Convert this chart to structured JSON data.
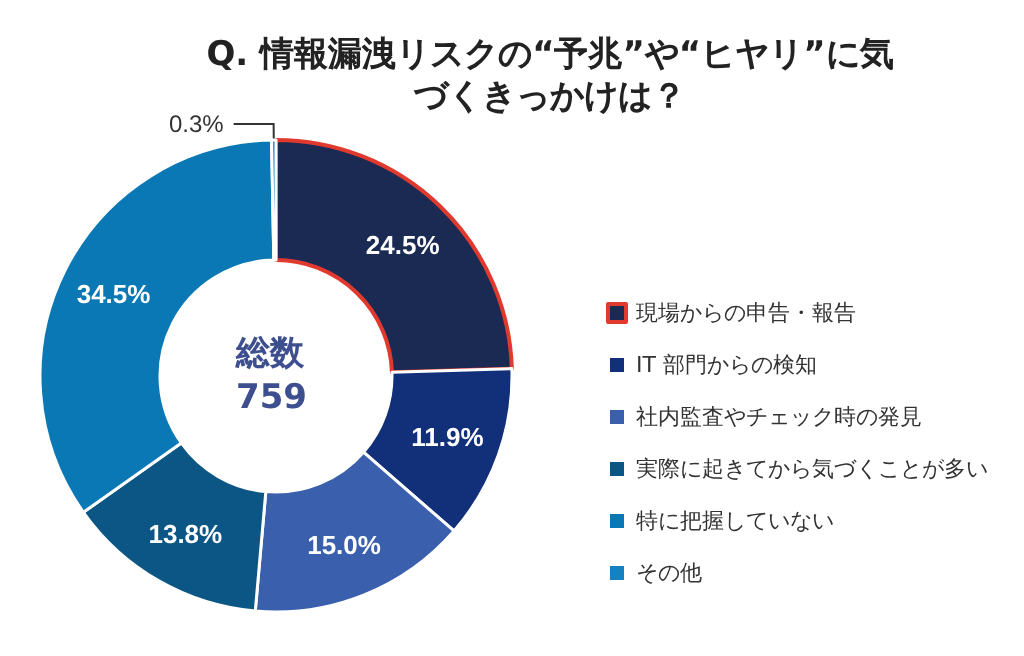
{
  "chart_data": {
    "type": "donut",
    "title": "Q. 情報漏洩リスクの“予兆”や“ヒヤリ”に気づくきっかけは？",
    "categories": [
      "現場からの申告・報告",
      "IT 部門からの検知",
      "社内監査やチェック時の発見",
      "実際に起きてから気づくことが多い",
      "特に把握していない",
      "その他"
    ],
    "values": [
      24.5,
      11.9,
      15.0,
      13.8,
      34.5,
      0.3
    ],
    "value_labels": [
      "24.5%",
      "11.9%",
      "15.0%",
      "13.8%",
      "34.5%",
      "0.3%"
    ],
    "colors": [
      "#1b2a52",
      "#12307a",
      "#3a5fad",
      "#0b5685",
      "#0a78b5",
      "#1581c0"
    ],
    "annotations": [
      "総数\n759"
    ],
    "legend": "right"
  }
}
